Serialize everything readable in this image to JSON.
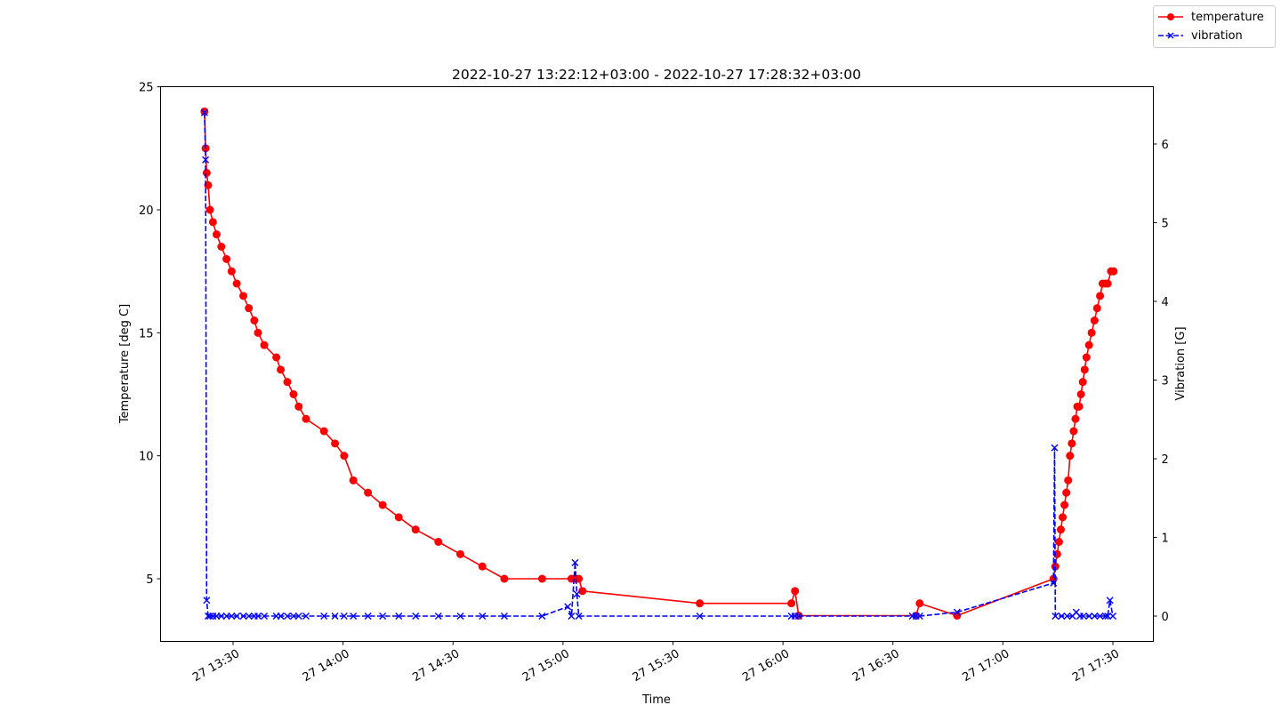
{
  "chart_data": {
    "type": "line",
    "title": "2022-10-27 13:22:12+03:00 - 2022-10-27 17:28:32+03:00",
    "xlabel": "Time",
    "ylabel": "Temperature [deg C]",
    "y2label": "Vibration [G]",
    "x_ticks": [
      "27 13:30",
      "27 14:00",
      "27 14:30",
      "27 15:00",
      "27 15:30",
      "27 16:00",
      "27 16:30",
      "27 17:00",
      "27 17:30"
    ],
    "x_tick_minutes": [
      30,
      60,
      90,
      120,
      150,
      180,
      210,
      240,
      270
    ],
    "y_ticks": [
      5,
      10,
      15,
      20,
      25
    ],
    "y2_ticks": [
      0,
      1,
      2,
      3,
      4,
      5,
      6
    ],
    "xlim_minutes": [
      18.7,
      278.6
    ],
    "ylim": [
      2.5,
      25.1
    ],
    "y2lim": [
      -0.35,
      6.7
    ],
    "grid": false,
    "legend_position": "upper right (figure)",
    "series": [
      {
        "name": "temperature",
        "axis": "left",
        "color": "#ff0000",
        "style": "solid",
        "marker": "circle",
        "x_minutes": [
          22.2,
          22.5,
          22.8,
          23.2,
          23.7,
          24.5,
          25.5,
          26.8,
          28.2,
          29.6,
          31.0,
          32.8,
          34.3,
          35.8,
          36.8,
          38.5,
          41.8,
          43.0,
          44.8,
          46.5,
          47.9,
          49.9,
          54.8,
          57.8,
          60.3,
          62.8,
          66.8,
          70.8,
          75.2,
          79.8,
          86.0,
          92.0,
          98.0,
          104.0,
          114.3,
          122.3,
          123.3,
          124.3,
          125.3,
          157.3,
          182.3,
          183.3,
          184.3,
          216.3,
          217.3,
          227.5,
          253.8,
          254.3,
          254.8,
          255.3,
          255.8,
          256.3,
          256.8,
          257.3,
          257.8,
          258.3,
          258.8,
          259.3,
          259.8,
          260.3,
          260.8,
          261.3,
          261.8,
          262.3,
          262.8,
          263.5,
          264.2,
          265.0,
          265.7,
          266.5,
          267.2,
          268.0,
          268.6,
          269.5,
          270.2
        ],
        "values": [
          24.0,
          22.5,
          21.5,
          21.0,
          20.0,
          19.5,
          19.0,
          18.5,
          18.0,
          17.5,
          17.0,
          16.5,
          16.0,
          15.5,
          15.0,
          14.5,
          14.0,
          13.5,
          13.0,
          12.5,
          12.0,
          11.5,
          11.0,
          10.5,
          10.0,
          9.0,
          8.5,
          8.0,
          7.5,
          7.0,
          6.5,
          6.0,
          5.5,
          5.0,
          5.0,
          5.0,
          5.0,
          5.0,
          4.5,
          4.0,
          4.0,
          4.5,
          3.5,
          3.5,
          4.0,
          3.5,
          5.0,
          5.5,
          6.0,
          6.5,
          7.0,
          7.5,
          8.0,
          8.5,
          9.0,
          10.0,
          10.5,
          11.0,
          11.5,
          12.0,
          12.0,
          12.5,
          13.0,
          13.5,
          14.0,
          14.5,
          15.0,
          15.5,
          16.0,
          16.5,
          17.0,
          17.0,
          17.0,
          17.5,
          17.5
        ]
      },
      {
        "name": "vibration",
        "axis": "right",
        "color": "#0000ff",
        "style": "dashed",
        "marker": "x",
        "x_minutes": [
          22.2,
          22.5,
          22.8,
          23.2,
          23.7,
          24.5,
          25.5,
          26.8,
          28.2,
          29.6,
          31.0,
          32.8,
          34.3,
          35.8,
          36.8,
          38.5,
          41.8,
          43.0,
          44.8,
          46.5,
          47.9,
          49.9,
          54.8,
          57.8,
          60.3,
          62.8,
          66.8,
          70.8,
          75.2,
          79.8,
          86.0,
          92.0,
          98.0,
          104.0,
          114.3,
          121.3,
          122.3,
          123.3,
          123.8,
          124.3,
          157.3,
          182.3,
          183.3,
          184.3,
          215.3,
          216.3,
          217.3,
          227.5,
          253.8,
          254.1,
          254.3,
          256.0,
          257.5,
          259.0,
          260.0,
          261.0,
          262.0,
          263.5,
          265.0,
          266.5,
          268.0,
          268.6,
          269.2,
          270.0
        ],
        "values": [
          6.4,
          5.8,
          0.2,
          0.0,
          0.0,
          0.0,
          0.0,
          0.0,
          0.0,
          0.0,
          0.0,
          0.0,
          0.0,
          0.0,
          0.0,
          0.0,
          0.0,
          0.0,
          0.0,
          0.0,
          0.0,
          0.0,
          0.0,
          0.0,
          0.0,
          0.0,
          0.0,
          0.0,
          0.0,
          0.0,
          0.0,
          0.0,
          0.0,
          0.0,
          0.0,
          0.12,
          0.0,
          0.68,
          0.28,
          0.0,
          0.0,
          0.0,
          0.0,
          0.0,
          0.0,
          0.0,
          0.0,
          0.05,
          0.42,
          2.14,
          0.0,
          0.0,
          0.0,
          0.0,
          0.05,
          0.0,
          0.0,
          0.0,
          0.0,
          0.0,
          0.0,
          0.0,
          0.2,
          0.0
        ]
      }
    ]
  },
  "legend": {
    "items": [
      {
        "label": "temperature"
      },
      {
        "label": "vibration"
      }
    ]
  }
}
